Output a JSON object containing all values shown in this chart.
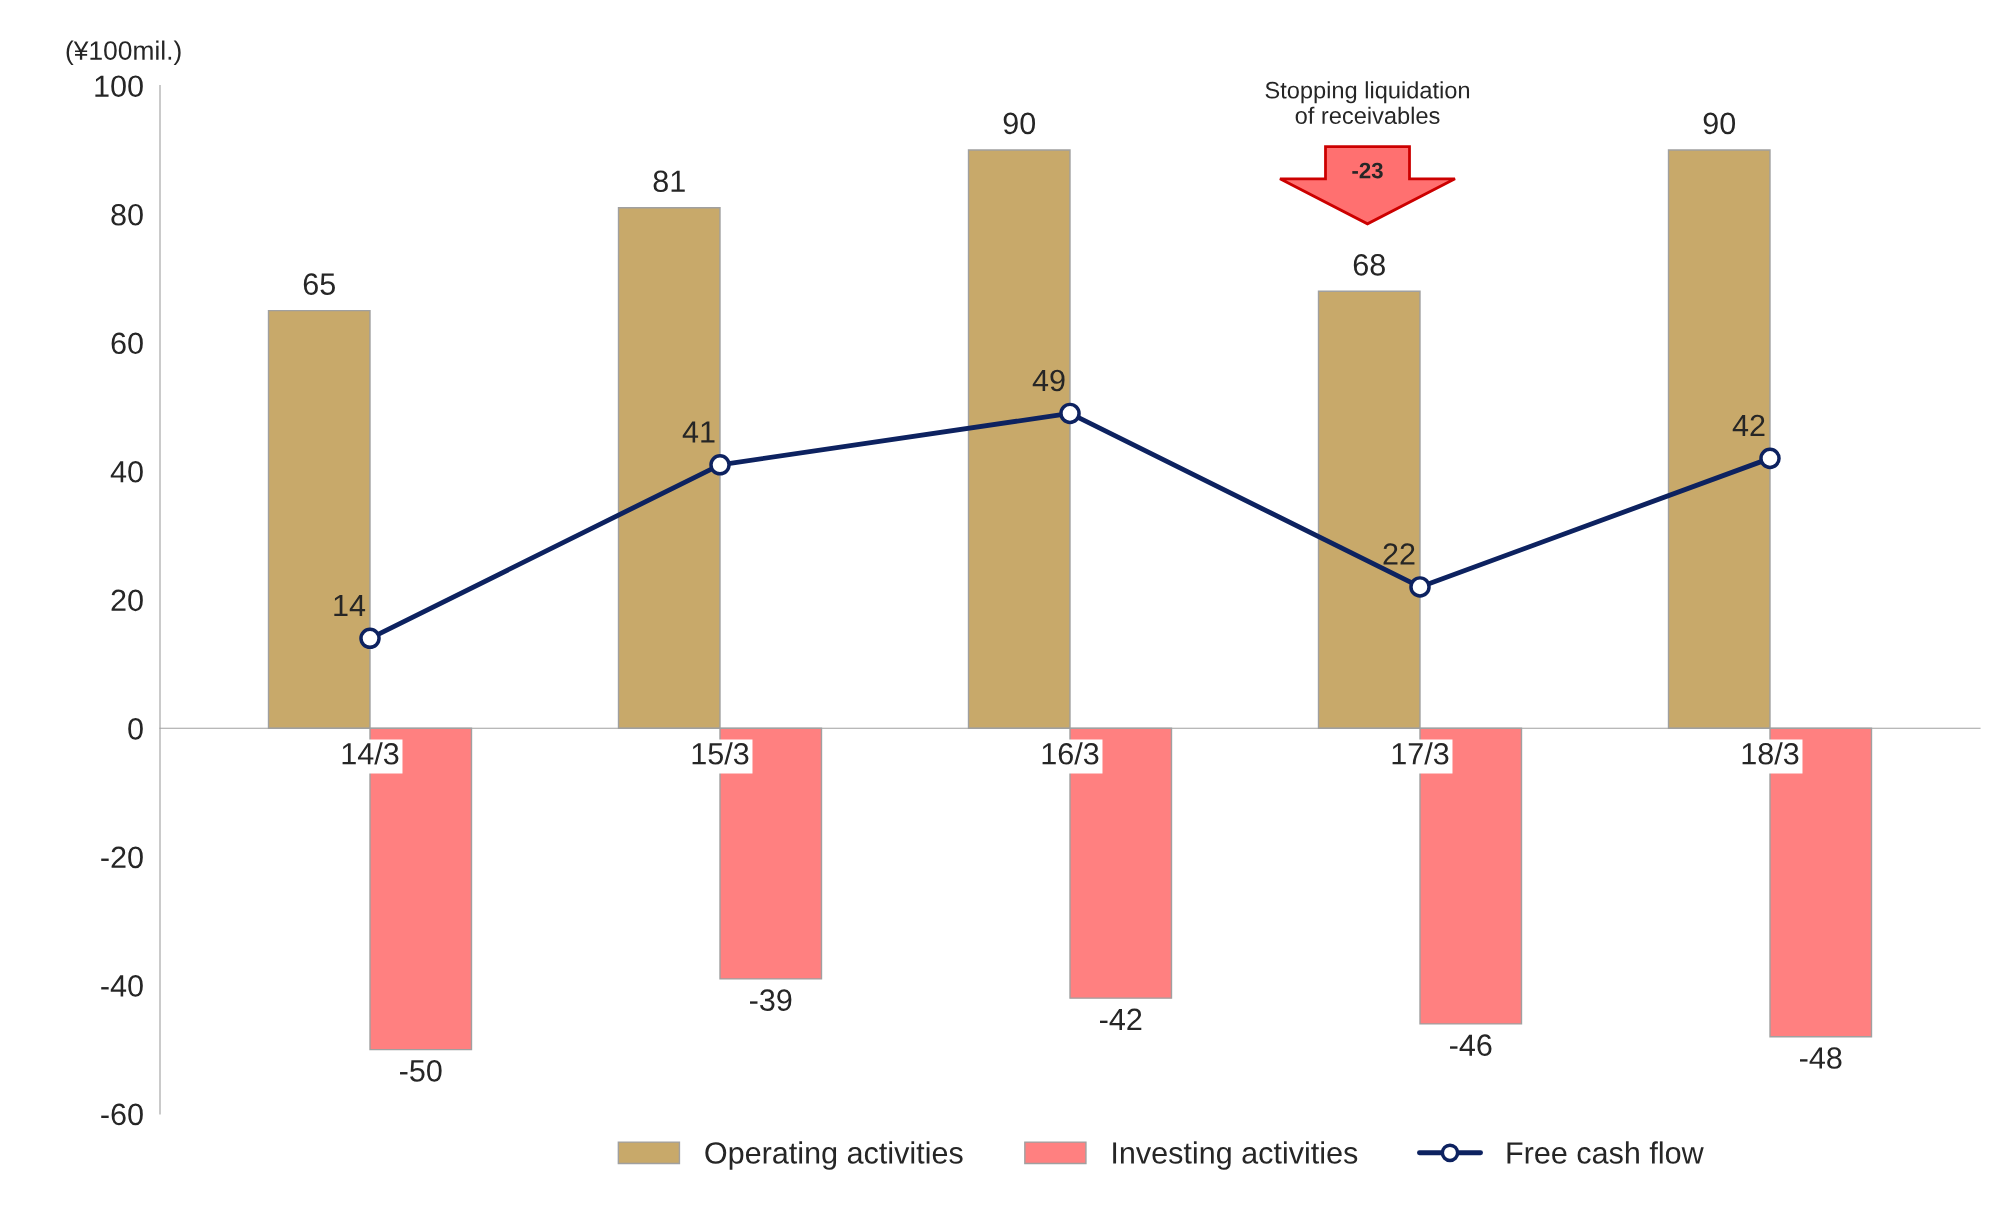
{
  "chart_data": {
    "type": "bar",
    "ylabel": "(¥100mil.)",
    "categories": [
      "14/3",
      "15/3",
      "16/3",
      "17/3",
      "18/3"
    ],
    "series": [
      {
        "name": "Operating activities",
        "color": "#c8a96a",
        "values": [
          65,
          81,
          90,
          68,
          90
        ]
      },
      {
        "name": "Investing activities",
        "color": "#ff8080",
        "values": [
          -50,
          -39,
          -42,
          -46,
          -48
        ]
      },
      {
        "name": "Free cash flow",
        "type": "line",
        "color": "#0d2260",
        "marker": "circle",
        "values": [
          14,
          41,
          49,
          22,
          42
        ]
      }
    ],
    "annotations": [
      "Stopping liquidation\nof receivables",
      "-23"
    ],
    "ylim": [
      -60,
      100
    ],
    "yticks": [
      -60,
      -40,
      -20,
      0,
      20,
      40,
      60,
      80,
      100
    ],
    "data_labels": true,
    "grid": false,
    "legend": "bottom"
  }
}
